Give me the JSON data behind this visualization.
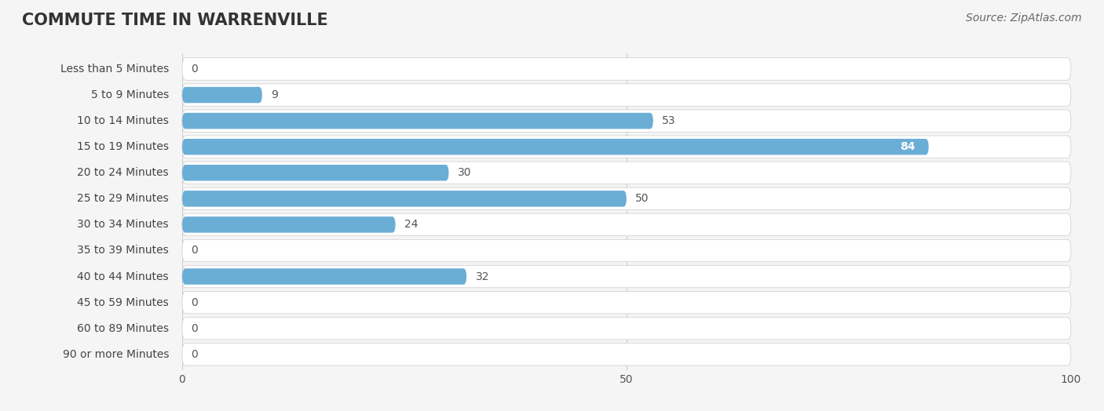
{
  "title": "COMMUTE TIME IN WARRENVILLE",
  "source": "Source: ZipAtlas.com",
  "categories": [
    "Less than 5 Minutes",
    "5 to 9 Minutes",
    "10 to 14 Minutes",
    "15 to 19 Minutes",
    "20 to 24 Minutes",
    "25 to 29 Minutes",
    "30 to 34 Minutes",
    "35 to 39 Minutes",
    "40 to 44 Minutes",
    "45 to 59 Minutes",
    "60 to 89 Minutes",
    "90 or more Minutes"
  ],
  "values": [
    0,
    9,
    53,
    84,
    30,
    50,
    24,
    0,
    32,
    0,
    0,
    0
  ],
  "bar_color": "#6aaed6",
  "xlim": [
    0,
    100
  ],
  "xticks": [
    0,
    50,
    100
  ],
  "bg_color": "#f5f5f5",
  "title_fontsize": 15,
  "label_fontsize": 10,
  "value_fontsize": 10,
  "source_fontsize": 10
}
